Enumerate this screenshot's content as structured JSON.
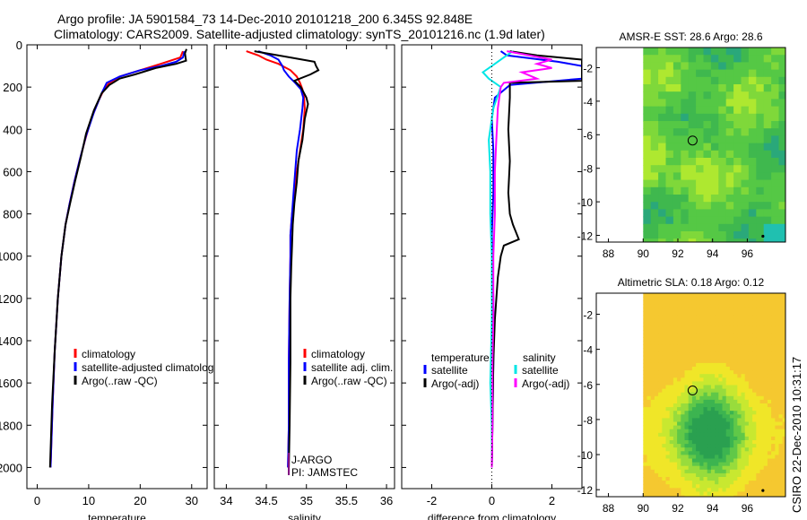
{
  "figure": {
    "title_line1": "Argo profile: JA 5901584_73 14-Dec-2010 20101218_200 6.345S 92.848E",
    "title_line2": "Climatology: CARS2009. Satellite-adjusted climatology: synTS_20101216.nc (1.9d later)",
    "side_label": "CSIRO 22-Dec-2010 10:31:17"
  },
  "colors": {
    "climatology": "#ff0000",
    "satellite": "#0000ff",
    "argo": "#000000",
    "sat_diff_salinity": "#00e6e6",
    "argo_diff_salinity": "#ff00ff"
  },
  "chart_data": [
    {
      "type": "line",
      "id": "temperature",
      "xlabel": "temperature",
      "ylabel": "",
      "xlim": [
        -2,
        33
      ],
      "ylim": [
        2100,
        0
      ],
      "xticks": [
        0,
        10,
        20,
        30
      ],
      "yticks": [
        0,
        200,
        400,
        600,
        800,
        1000,
        1200,
        1400,
        1600,
        1800,
        2000
      ],
      "legend": [
        "climatology",
        "satellite-adjusted climatology",
        "Argo(..raw -QC)"
      ],
      "series": [
        {
          "name": "climatology",
          "color": "#ff0000",
          "x": [
            28.3,
            27.8,
            24,
            20,
            16,
            14,
            13,
            12,
            10.5,
            9.3,
            8.2,
            7.2,
            6.3,
            5.5,
            4.7,
            4,
            3.4,
            3,
            2.6
          ],
          "y": [
            30,
            60,
            90,
            120,
            150,
            180,
            210,
            260,
            350,
            450,
            550,
            650,
            750,
            850,
            1000,
            1200,
            1450,
            1700,
            2000
          ]
        },
        {
          "name": "satellite-adjusted climatology",
          "color": "#0000ff",
          "x": [
            28.6,
            28.3,
            27,
            24,
            20,
            16,
            13.5,
            12.5,
            11,
            9.5,
            8.3,
            7.3,
            6.3,
            5.5,
            4.7,
            4,
            3.4,
            3,
            2.6
          ],
          "y": [
            30,
            60,
            80,
            100,
            120,
            150,
            180,
            230,
            320,
            430,
            540,
            640,
            750,
            850,
            1000,
            1200,
            1450,
            1700,
            2000
          ]
        },
        {
          "name": "Argo(..raw -QC)",
          "color": "#000000",
          "x": [
            29,
            28.7,
            28.8,
            28.9,
            27,
            23,
            19,
            16,
            14,
            12.5,
            11,
            9.5,
            8.5,
            7.4,
            6.4,
            5.5,
            4.7,
            4,
            3.4,
            2.9,
            2.5
          ],
          "y": [
            20,
            40,
            60,
            75,
            90,
            110,
            140,
            160,
            190,
            230,
            310,
            420,
            530,
            640,
            750,
            850,
            1000,
            1200,
            1450,
            1700,
            2000
          ]
        }
      ]
    },
    {
      "type": "line",
      "id": "salinity",
      "xlabel": "salinity",
      "xlim": [
        33.85,
        36.1
      ],
      "ylim": [
        2100,
        0
      ],
      "xticks": [
        34,
        34.5,
        35,
        35.5,
        36
      ],
      "legend": [
        "climatology",
        "satellite adj. clim.",
        "Argo(..raw -QC)"
      ],
      "annotations": [
        "J-ARGO",
        "PI: JAMSTEC"
      ],
      "series": [
        {
          "name": "climatology",
          "color": "#ff0000",
          "x": [
            34.25,
            34.4,
            34.5,
            34.65,
            34.8,
            34.88,
            34.92,
            34.95,
            34.97,
            34.98,
            34.96,
            34.92,
            34.88,
            34.85,
            34.82,
            34.8,
            34.8,
            34.79,
            34.78,
            34.78,
            34.77
          ],
          "y": [
            30,
            50,
            70,
            90,
            120,
            150,
            180,
            210,
            250,
            300,
            400,
            500,
            600,
            700,
            800,
            900,
            1000,
            1200,
            1500,
            1800,
            2000
          ]
        },
        {
          "name": "satellite adj. clim.",
          "color": "#0000ff",
          "x": [
            34.4,
            34.55,
            34.65,
            34.7,
            34.72,
            34.78,
            34.86,
            34.93,
            34.96,
            34.95,
            34.92,
            34.88,
            34.86,
            34.84,
            34.82,
            34.8,
            34.8,
            34.79,
            34.78,
            34.78,
            34.77
          ],
          "y": [
            30,
            50,
            70,
            100,
            120,
            150,
            180,
            210,
            250,
            300,
            400,
            500,
            600,
            700,
            800,
            900,
            1000,
            1200,
            1500,
            1800,
            2000
          ]
        },
        {
          "name": "Argo(..raw -QC)",
          "color": "#000000",
          "x": [
            34.35,
            34.8,
            35.1,
            35.12,
            35.15,
            35.05,
            34.85,
            34.93,
            35.0,
            35.02,
            34.98,
            34.95,
            34.9,
            34.88,
            34.85,
            34.83,
            34.82,
            34.81,
            34.8,
            34.8,
            34.79,
            34.78
          ],
          "y": [
            30,
            60,
            80,
            100,
            120,
            140,
            170,
            200,
            250,
            280,
            350,
            450,
            550,
            650,
            750,
            850,
            950,
            1050,
            1200,
            1500,
            1800,
            2000
          ]
        }
      ]
    },
    {
      "type": "line",
      "id": "difference",
      "xlabel": "difference from climatology",
      "xlim": [
        -3,
        3
      ],
      "ylim": [
        2100,
        0
      ],
      "xticks": [
        -2,
        0,
        2
      ],
      "legend_headers": [
        "temperature",
        "salinity"
      ],
      "legend": [
        "satellite",
        "Argo(-adj)",
        "satellite",
        "Argo(-adj)"
      ],
      "series": [
        {
          "name": "temperature satellite",
          "color": "#0000ff",
          "x": [
            0.3,
            0.5,
            2.2,
            3.0,
            3.0,
            0.6,
            0.1,
            0.0,
            0.05,
            0.05,
            0.0,
            0.05,
            0.05,
            0.02,
            0.0
          ],
          "y": [
            30,
            50,
            80,
            100,
            160,
            190,
            250,
            350,
            500,
            700,
            900,
            1200,
            1500,
            1800,
            2000
          ]
        },
        {
          "name": "temperature Argo(-adj)",
          "color": "#000000",
          "x": [
            0.6,
            1.5,
            3.0,
            3.0,
            0.6,
            0.6,
            0.55,
            0.6,
            0.55,
            0.6,
            0.7,
            0.9,
            0.4,
            0.3,
            0.2,
            0.1,
            0.05,
            0.02,
            0.0
          ],
          "y": [
            30,
            50,
            70,
            170,
            180,
            250,
            400,
            550,
            700,
            800,
            850,
            920,
            950,
            1000,
            1100,
            1300,
            1500,
            1800,
            2000
          ]
        },
        {
          "name": "salinity satellite",
          "color": "#00e6e6",
          "x": [
            0.7,
            0.4,
            0.1,
            -0.3,
            -0.1,
            0.3,
            0.05,
            -0.1,
            -0.05,
            -0.05,
            0.0,
            0.0,
            -0.05,
            0.0,
            0.0
          ],
          "y": [
            30,
            60,
            90,
            130,
            160,
            200,
            300,
            450,
            600,
            800,
            1000,
            1300,
            1600,
            1800,
            2000
          ]
        },
        {
          "name": "salinity Argo(-adj)",
          "color": "#ff00ff",
          "x": [
            0.5,
            2.0,
            1.5,
            2.0,
            1.0,
            1.5,
            0.4,
            0.3,
            0.2,
            0.15,
            0.1,
            0.1,
            0.05,
            0.05,
            0.02,
            0.02,
            0.0
          ],
          "y": [
            30,
            70,
            90,
            110,
            130,
            160,
            180,
            200,
            300,
            450,
            600,
            800,
            1000,
            1300,
            1500,
            1800,
            2000
          ]
        }
      ]
    },
    {
      "type": "heatmap",
      "id": "sst_map",
      "title": "AMSR-E SST: 28.6 Argo: 28.6",
      "xlim": [
        87.3,
        98.2
      ],
      "ylim": [
        -12.4,
        -0.8
      ],
      "xticks": [
        88,
        90,
        92,
        94,
        96
      ],
      "yticks": [
        -2,
        -4,
        -6,
        -8,
        -10,
        -12
      ],
      "float_position": {
        "lon": 92.848,
        "lat": -6.345
      }
    },
    {
      "type": "heatmap",
      "id": "sla_map",
      "title": "Altimetric SLA: 0.18 Argo: 0.12",
      "xlim": [
        87.3,
        98.2
      ],
      "ylim": [
        -12.4,
        -0.8
      ],
      "xticks": [
        88,
        90,
        92,
        94,
        96
      ],
      "yticks": [
        -2,
        -4,
        -6,
        -8,
        -10,
        -12
      ],
      "float_position": {
        "lon": 92.848,
        "lat": -6.345
      }
    }
  ]
}
